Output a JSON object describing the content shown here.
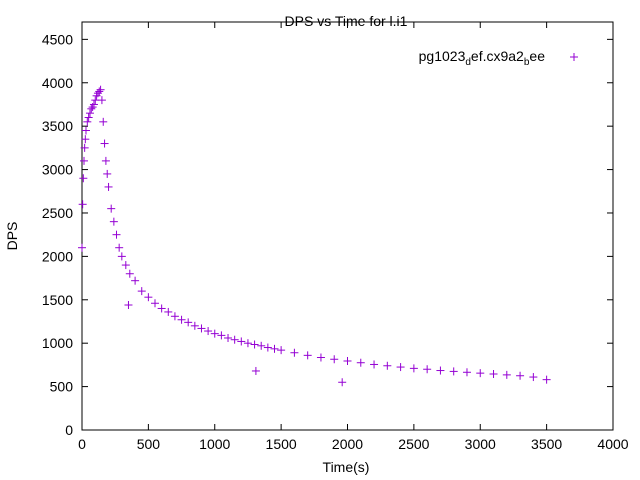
{
  "chart_data": {
    "type": "scatter",
    "title": "DPS vs Time for l.i1",
    "xlabel": "Time(s)",
    "ylabel": "DPS",
    "xlim": [
      0,
      4000
    ],
    "ylim": [
      0,
      4700
    ],
    "xticks": [
      0,
      500,
      1000,
      1500,
      2000,
      2500,
      3000,
      3500,
      4000
    ],
    "yticks": [
      0,
      500,
      1000,
      1500,
      2000,
      2500,
      3000,
      3500,
      4000,
      4500
    ],
    "grid": false,
    "legend_position": "top-right",
    "legend": {
      "label": {
        "base": "pg1023",
        "sub1": "d",
        "mid": "ef.cx9a2",
        "sub2": "b",
        "tail": "ee"
      }
    },
    "series": [
      {
        "color": "#9400d3",
        "marker": "+",
        "x": [
          0,
          5,
          10,
          15,
          20,
          25,
          30,
          40,
          50,
          60,
          70,
          80,
          90,
          100,
          110,
          120,
          130,
          140,
          150,
          160,
          170,
          180,
          190,
          200,
          220,
          240,
          260,
          280,
          300,
          330,
          360,
          400,
          450,
          500,
          550,
          600,
          650,
          700,
          750,
          800,
          850,
          900,
          950,
          1000,
          1050,
          1100,
          1150,
          1200,
          1250,
          1300,
          1350,
          1400,
          1450,
          1500,
          1600,
          1700,
          1800,
          1900,
          2000,
          2100,
          2200,
          2300,
          2400,
          2500,
          2600,
          2700,
          2800,
          2900,
          3000,
          3100,
          3200,
          3300,
          3400,
          3500,
          350,
          1310,
          1960
        ],
        "y": [
          2100,
          2600,
          2900,
          3100,
          3250,
          3350,
          3450,
          3550,
          3600,
          3650,
          3700,
          3720,
          3750,
          3800,
          3850,
          3880,
          3900,
          3920,
          3800,
          3550,
          3300,
          3100,
          2950,
          2800,
          2550,
          2400,
          2250,
          2100,
          2000,
          1900,
          1800,
          1720,
          1600,
          1530,
          1460,
          1400,
          1360,
          1310,
          1270,
          1240,
          1200,
          1170,
          1140,
          1110,
          1090,
          1060,
          1040,
          1020,
          1000,
          985,
          970,
          950,
          935,
          920,
          890,
          860,
          835,
          815,
          795,
          775,
          755,
          740,
          725,
          710,
          700,
          685,
          675,
          665,
          655,
          645,
          635,
          625,
          610,
          580,
          1440,
          680,
          550
        ]
      }
    ]
  }
}
